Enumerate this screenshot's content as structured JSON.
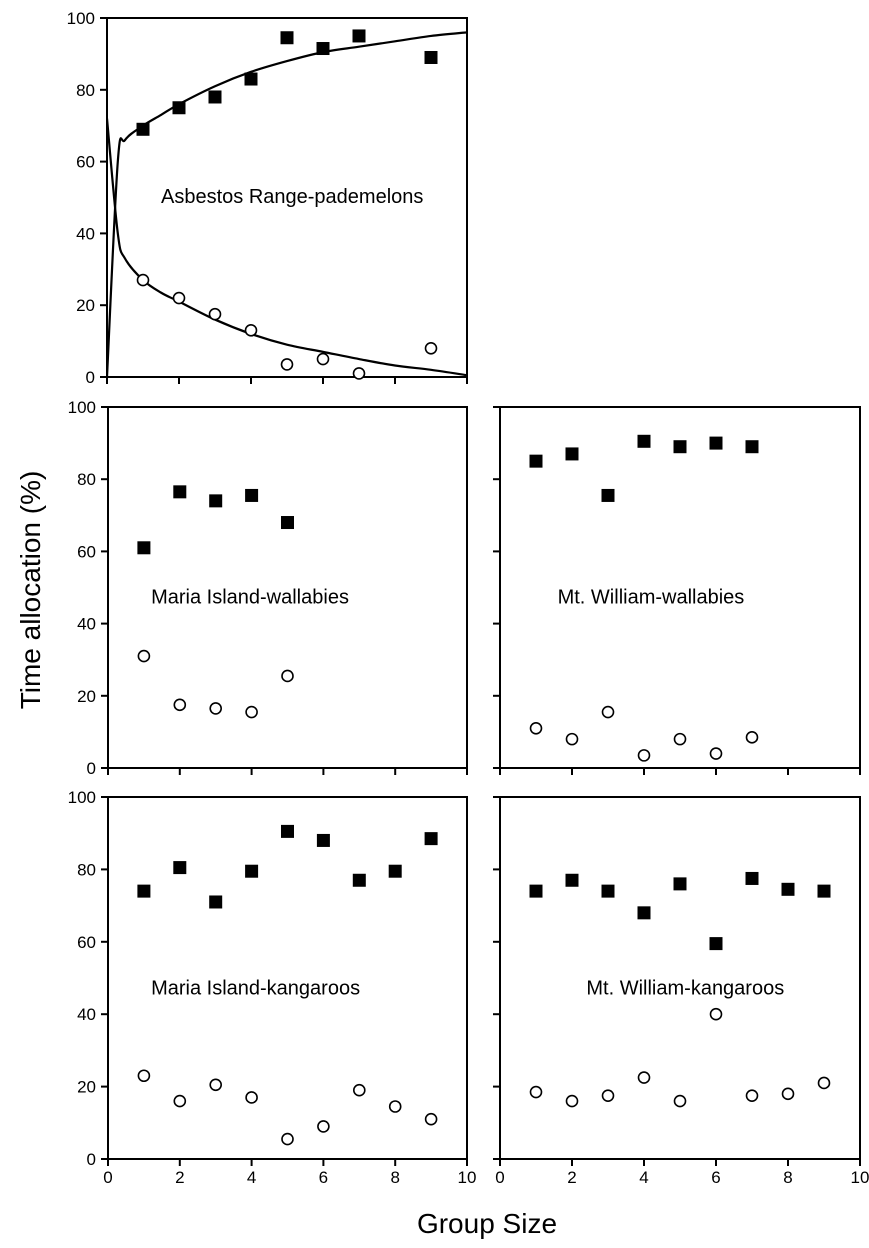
{
  "chart_data": [
    {
      "type": "scatter",
      "title": "Asbestos Range-pademelons",
      "xlim": [
        0,
        10
      ],
      "ylim": [
        0,
        100
      ],
      "xticks": [
        "0",
        "2",
        "4",
        "6",
        "8",
        "10"
      ],
      "yticks": [
        "0",
        "20",
        "40",
        "60",
        "80",
        "100"
      ],
      "show_x_tick_labels": false,
      "show_y_tick_labels": true,
      "series": [
        {
          "marker": "filled-square",
          "x": [
            1,
            2,
            3,
            4,
            5,
            6,
            7,
            9
          ],
          "y": [
            69,
            75,
            78,
            83,
            94.5,
            91.5,
            95,
            89
          ]
        },
        {
          "marker": "open-circle",
          "x": [
            1,
            2,
            3,
            4,
            5,
            6,
            7,
            9
          ],
          "y": [
            27,
            22,
            17.5,
            13,
            3.5,
            5,
            1,
            8
          ]
        }
      ],
      "fit_curves": [
        {
          "marker": "filled-square",
          "x": [
            0,
            0.3,
            0.5,
            1,
            1.5,
            2,
            3,
            4,
            5,
            6,
            7,
            8,
            9,
            10
          ],
          "y": [
            0,
            60,
            66,
            70,
            73,
            76,
            81,
            85,
            88,
            90.5,
            92,
            93.5,
            95,
            96
          ]
        },
        {
          "marker": "open-circle",
          "x": [
            0,
            0.3,
            0.5,
            1,
            1.5,
            2,
            3,
            4,
            5,
            6,
            7,
            8,
            9,
            10
          ],
          "y": [
            72,
            40,
            33,
            27,
            23.5,
            21,
            16,
            12,
            9,
            7,
            5,
            3.2,
            2,
            0.5
          ]
        }
      ]
    },
    {
      "type": "scatter",
      "title": "Maria Island-wallabies",
      "xlim": [
        0,
        10
      ],
      "ylim": [
        0,
        100
      ],
      "xticks": [
        "0",
        "2",
        "4",
        "6",
        "8",
        "10"
      ],
      "yticks": [
        "0",
        "20",
        "40",
        "60",
        "80",
        "100"
      ],
      "show_x_tick_labels": false,
      "show_y_tick_labels": true,
      "series": [
        {
          "marker": "filled-square",
          "x": [
            1,
            2,
            3,
            4,
            5
          ],
          "y": [
            61,
            76.5,
            74,
            75.5,
            68
          ]
        },
        {
          "marker": "open-circle",
          "x": [
            1,
            2,
            3,
            4,
            5
          ],
          "y": [
            31,
            17.5,
            16.5,
            15.5,
            25.5
          ]
        }
      ]
    },
    {
      "type": "scatter",
      "title": "Mt. William-wallabies",
      "xlim": [
        0,
        10
      ],
      "ylim": [
        0,
        100
      ],
      "xticks": [
        "0",
        "2",
        "4",
        "6",
        "8",
        "10"
      ],
      "yticks": [
        "0",
        "20",
        "40",
        "60",
        "80",
        "100"
      ],
      "show_x_tick_labels": false,
      "show_y_tick_labels": false,
      "series": [
        {
          "marker": "filled-square",
          "x": [
            1,
            2,
            3,
            4,
            5,
            6,
            7
          ],
          "y": [
            85,
            87,
            75.5,
            90.5,
            89,
            90,
            89
          ]
        },
        {
          "marker": "open-circle",
          "x": [
            1,
            2,
            3,
            4,
            5,
            6,
            7
          ],
          "y": [
            11,
            8,
            15.5,
            3.5,
            8,
            4,
            8.5
          ]
        }
      ]
    },
    {
      "type": "scatter",
      "title": "Maria Island-kangaroos",
      "xlim": [
        0,
        10
      ],
      "ylim": [
        0,
        100
      ],
      "xticks": [
        "0",
        "2",
        "4",
        "6",
        "8",
        "10"
      ],
      "yticks": [
        "0",
        "20",
        "40",
        "60",
        "80",
        "100"
      ],
      "show_x_tick_labels": true,
      "show_y_tick_labels": true,
      "series": [
        {
          "marker": "filled-square",
          "x": [
            1,
            2,
            3,
            4,
            5,
            6,
            7,
            8,
            9
          ],
          "y": [
            74,
            80.5,
            71,
            79.5,
            90.5,
            88,
            77,
            79.5,
            88.5
          ]
        },
        {
          "marker": "open-circle",
          "x": [
            1,
            2,
            3,
            4,
            5,
            6,
            7,
            8,
            9
          ],
          "y": [
            23,
            16,
            20.5,
            17,
            5.5,
            9,
            19,
            14.5,
            11
          ]
        }
      ]
    },
    {
      "type": "scatter",
      "title": "Mt. William-kangaroos",
      "xlim": [
        0,
        10
      ],
      "ylim": [
        0,
        100
      ],
      "xticks": [
        "0",
        "2",
        "4",
        "6",
        "8",
        "10"
      ],
      "yticks": [
        "0",
        "20",
        "40",
        "60",
        "80",
        "100"
      ],
      "show_x_tick_labels": true,
      "show_y_tick_labels": false,
      "series": [
        {
          "marker": "filled-square",
          "x": [
            1,
            2,
            3,
            4,
            5,
            6,
            7,
            8,
            9
          ],
          "y": [
            74,
            77,
            74,
            68,
            76,
            59.5,
            77.5,
            74.5,
            74
          ]
        },
        {
          "marker": "open-circle",
          "x": [
            1,
            2,
            3,
            4,
            5,
            6,
            7,
            8,
            9
          ],
          "y": [
            18.5,
            16,
            17.5,
            22.5,
            16,
            40,
            17.5,
            18,
            21
          ]
        }
      ]
    }
  ],
  "labels": {
    "ylabel": "Time allocation (%)",
    "xlabel": "Group Size"
  }
}
